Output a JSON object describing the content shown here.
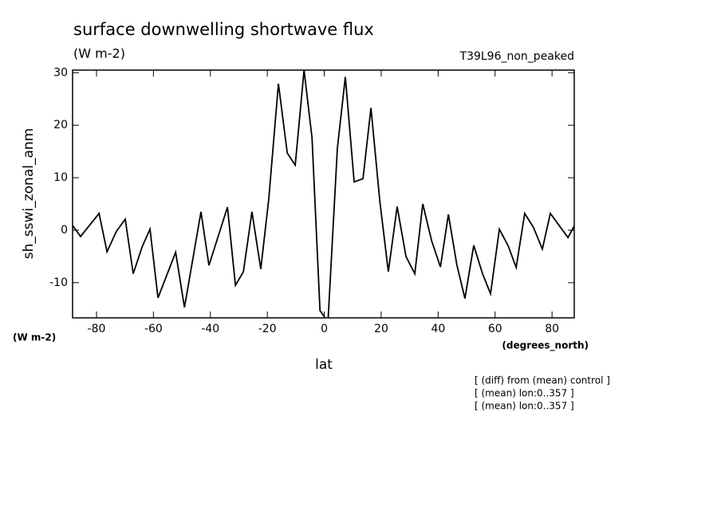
{
  "chart_data": {
    "type": "line",
    "title": "surface downwelling shortwave flux",
    "units": "(W m-2)",
    "run_label": "T39L96_non_peaked",
    "y_label": "sh_sswi_zonal_anm",
    "y_units": "(W m-2)",
    "x_label": "lat",
    "x_units": "(degrees_north)",
    "notes": [
      "[ (diff) from (mean) control ]",
      "[ (mean) lon:0..357 ]",
      "[ (mean) lon:0..357 ]"
    ],
    "x": [
      -88.4,
      -85.6,
      -79.1,
      -76.3,
      -73.0,
      -69.9,
      -67.1,
      -64.0,
      -61.2,
      -58.4,
      -52.2,
      -49.1,
      -43.3,
      -40.5,
      -34.0,
      -31.2,
      -28.4,
      -25.4,
      -22.3,
      -19.5,
      -16.1,
      -13.0,
      -10.2,
      -7.1,
      -4.3,
      -1.5,
      1.3,
      4.6,
      7.4,
      10.5,
      13.6,
      16.4,
      19.5,
      22.5,
      25.6,
      28.7,
      31.8,
      34.6,
      37.7,
      40.8,
      43.6,
      46.6,
      49.4,
      52.5,
      55.6,
      58.4,
      61.5,
      64.6,
      67.4,
      70.4,
      73.5,
      76.6,
      79.4,
      82.5,
      85.6,
      87.8
    ],
    "series": [
      {
        "name": "sh_sswi_zonal_anm",
        "color": "#000000",
        "values": [
          0.9,
          -1.2,
          3.2,
          -4.1,
          -0.2,
          2.1,
          -8.3,
          -3.2,
          0.2,
          -12.9,
          -4.2,
          -14.7,
          3.5,
          -6.7,
          4.4,
          -10.5,
          -7.9,
          3.5,
          -7.4,
          5.9,
          27.9,
          14.7,
          12.4,
          30.5,
          17.6,
          -15.3,
          -17.5,
          15.6,
          29.2,
          9.2,
          9.8,
          23.3,
          5.6,
          -7.9,
          4.5,
          -5.0,
          -8.3,
          5.0,
          -2.0,
          -7.0,
          3.0,
          -6.7,
          -13.0,
          -2.9,
          -8.3,
          -12.1,
          0.2,
          -3.0,
          -7.1,
          3.2,
          0.5,
          -3.6,
          3.2,
          0.9,
          -1.4,
          0.8
        ]
      }
    ],
    "xlim": [
      -88.4,
      87.8
    ],
    "xticks": [
      -80,
      -60,
      -40,
      -20,
      0,
      20,
      40,
      60,
      80
    ],
    "ylim": [
      -16.7,
      30.5
    ],
    "yticks": [
      -10,
      0,
      10,
      20,
      30
    ]
  }
}
